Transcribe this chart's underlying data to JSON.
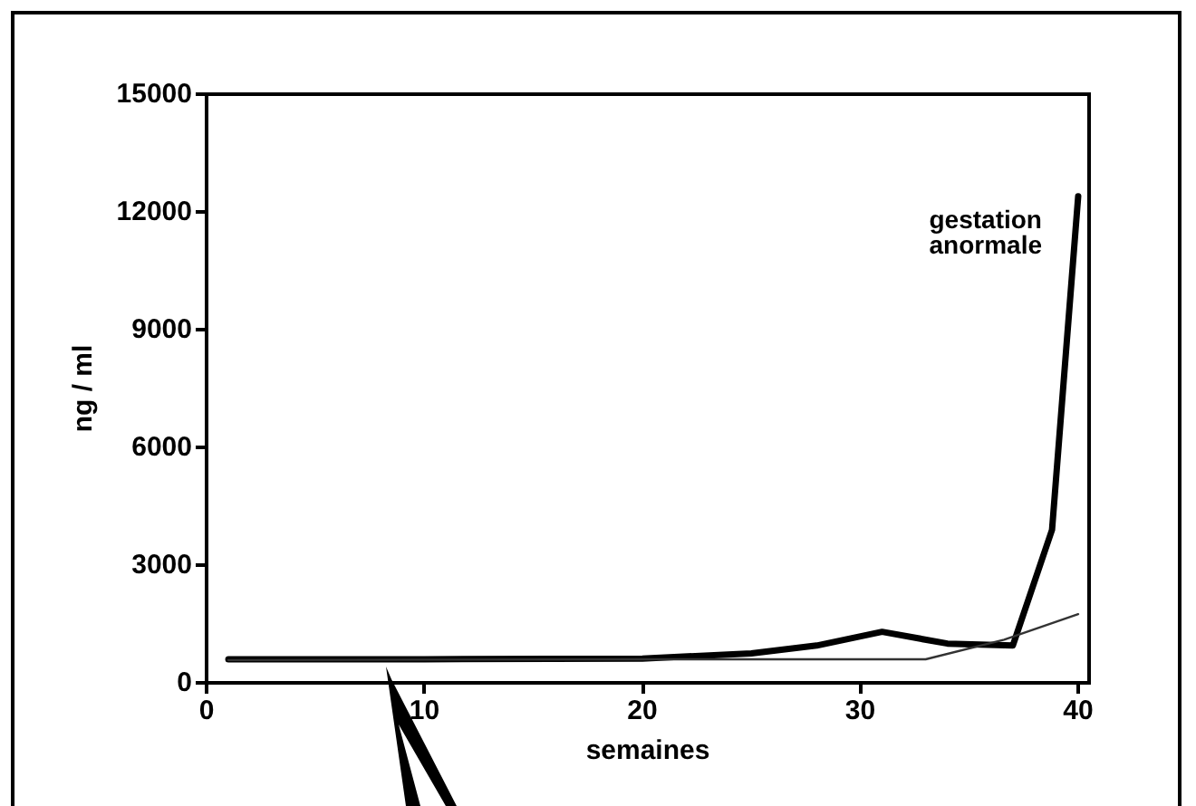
{
  "chart_data": {
    "type": "line",
    "xlabel": "semaines",
    "ylabel": "ng / ml",
    "xlim": [
      0,
      40.5
    ],
    "xticks": [
      0,
      10,
      20,
      30,
      40
    ],
    "ylim": [
      0,
      15000
    ],
    "yticks": [
      0,
      3000,
      6000,
      9000,
      12000,
      15000
    ],
    "grid": false,
    "marker": "none",
    "series": [
      {
        "color": "#000000",
        "x": [
          1,
          10,
          20,
          25,
          28,
          31,
          34,
          37,
          38.8,
          40
        ],
        "values": [
          600,
          600,
          620,
          750,
          950,
          1300,
          1000,
          950,
          3900,
          12400
        ]
      },
      {
        "color": "#333333",
        "x": [
          1,
          20,
          25,
          30,
          33,
          36.6,
          40
        ],
        "values": [
          580,
          600,
          600,
          600,
          600,
          1100,
          1750
        ]
      }
    ],
    "annotations": [
      "gestation\nanormale"
    ]
  }
}
